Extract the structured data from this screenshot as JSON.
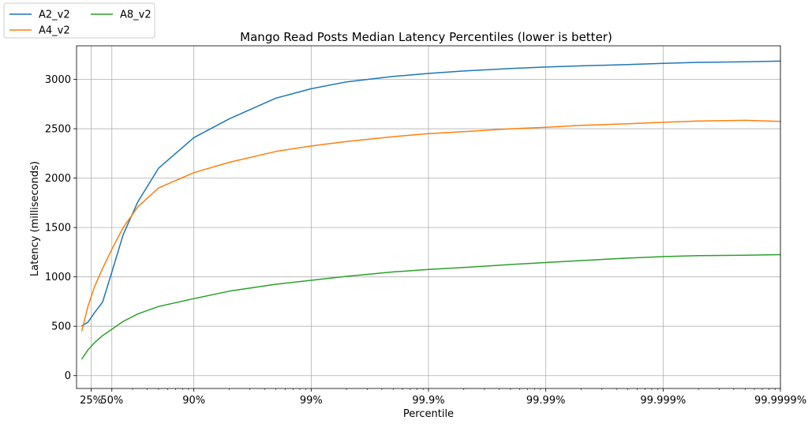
{
  "chart_data": {
    "type": "line",
    "title": "Mango Read Posts Median Latency Percentiles (lower is better)",
    "xlabel": "Percentile",
    "ylabel": "Latency (milliseconds)",
    "x_scale": "log of 1/(1-percentile)",
    "xlim": [
      "0%",
      "99.9999%"
    ],
    "ylim": [
      -130,
      3340
    ],
    "grid": true,
    "legend_position": "top-left outside axes, 2 columns",
    "x_ticks": [
      "25%",
      "50%",
      "90%",
      "99%",
      "99.9%",
      "99.99%",
      "99.999%",
      "99.9999%"
    ],
    "y_ticks": [
      0,
      500,
      1000,
      1500,
      2000,
      2500,
      3000
    ],
    "series": [
      {
        "name": "A2_v2",
        "color": "#1f77b4",
        "points": [
          [
            "10%",
            505
          ],
          [
            "20%",
            540
          ],
          [
            "30%",
            640
          ],
          [
            "40%",
            745
          ],
          [
            "50%",
            1050
          ],
          [
            "60%",
            1430
          ],
          [
            "70%",
            1760
          ],
          [
            "80%",
            2100
          ],
          [
            "90%",
            2410
          ],
          [
            "95%",
            2600
          ],
          [
            "98%",
            2810
          ],
          [
            "99%",
            2905
          ],
          [
            "99.5%",
            2975
          ],
          [
            "99.8%",
            3030
          ],
          [
            "99.9%",
            3060
          ],
          [
            "99.95%",
            3085
          ],
          [
            "99.98%",
            3110
          ],
          [
            "99.99%",
            3125
          ],
          [
            "99.995%",
            3137
          ],
          [
            "99.998%",
            3150
          ],
          [
            "99.999%",
            3162
          ],
          [
            "99.9995%",
            3172
          ],
          [
            "99.9998%",
            3178
          ],
          [
            "99.9999%",
            3185
          ]
        ]
      },
      {
        "name": "A4_v2",
        "color": "#ff7f0e",
        "points": [
          [
            "10%",
            455
          ],
          [
            "20%",
            700
          ],
          [
            "30%",
            905
          ],
          [
            "40%",
            1085
          ],
          [
            "50%",
            1280
          ],
          [
            "60%",
            1500
          ],
          [
            "70%",
            1710
          ],
          [
            "80%",
            1900
          ],
          [
            "90%",
            2055
          ],
          [
            "95%",
            2160
          ],
          [
            "98%",
            2270
          ],
          [
            "99%",
            2325
          ],
          [
            "99.5%",
            2370
          ],
          [
            "99.8%",
            2420
          ],
          [
            "99.9%",
            2450
          ],
          [
            "99.95%",
            2470
          ],
          [
            "99.98%",
            2500
          ],
          [
            "99.99%",
            2515
          ],
          [
            "99.995%",
            2535
          ],
          [
            "99.998%",
            2550
          ],
          [
            "99.999%",
            2565
          ],
          [
            "99.9995%",
            2578
          ],
          [
            "99.9998%",
            2585
          ],
          [
            "99.9999%",
            2575
          ]
        ]
      },
      {
        "name": "A8_v2",
        "color": "#2ca02c",
        "points": [
          [
            "10%",
            170
          ],
          [
            "20%",
            260
          ],
          [
            "30%",
            335
          ],
          [
            "40%",
            405
          ],
          [
            "50%",
            470
          ],
          [
            "60%",
            550
          ],
          [
            "70%",
            625
          ],
          [
            "80%",
            700
          ],
          [
            "90%",
            780
          ],
          [
            "95%",
            855
          ],
          [
            "98%",
            925
          ],
          [
            "99%",
            965
          ],
          [
            "99.5%",
            1005
          ],
          [
            "99.8%",
            1050
          ],
          [
            "99.9%",
            1075
          ],
          [
            "99.95%",
            1095
          ],
          [
            "99.98%",
            1125
          ],
          [
            "99.99%",
            1145
          ],
          [
            "99.995%",
            1165
          ],
          [
            "99.998%",
            1190
          ],
          [
            "99.999%",
            1205
          ],
          [
            "99.9995%",
            1215
          ],
          [
            "99.9998%",
            1220
          ],
          [
            "99.9999%",
            1225
          ]
        ]
      }
    ]
  }
}
